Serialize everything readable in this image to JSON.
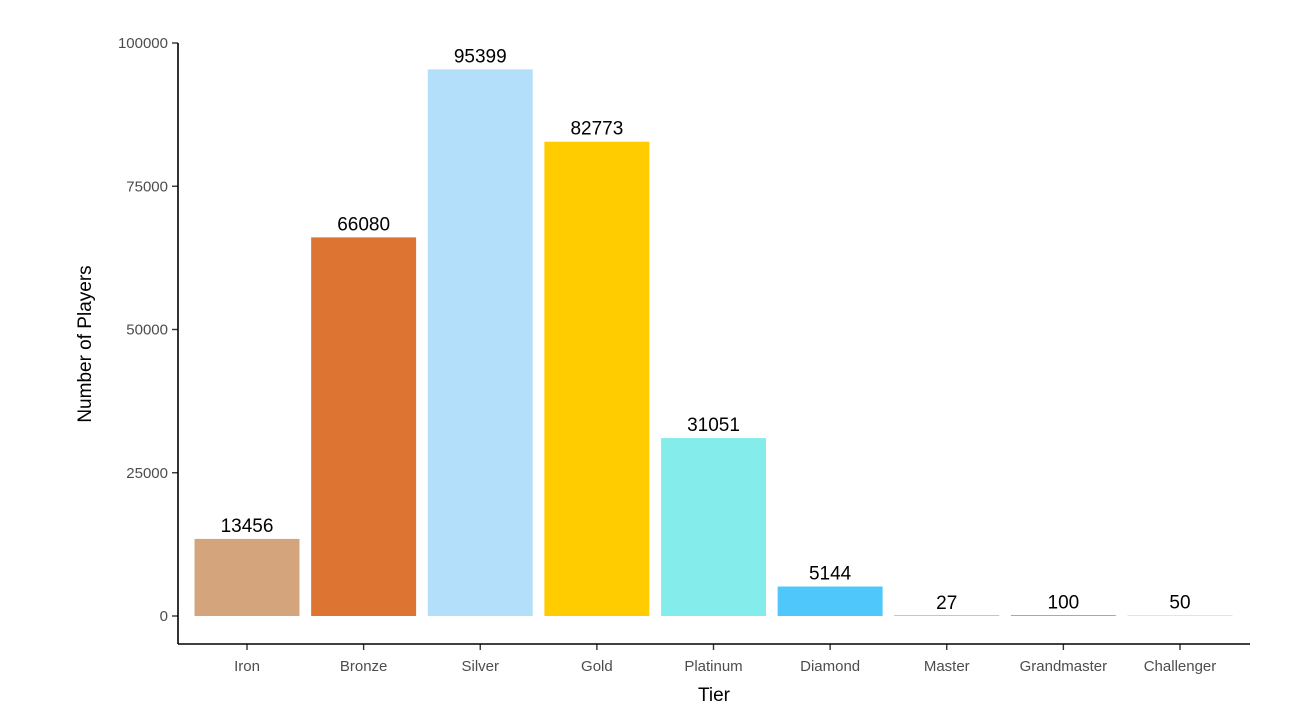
{
  "chart_data": {
    "type": "bar",
    "title": "",
    "xlabel": "Tier",
    "ylabel": "Number of Players",
    "categories": [
      "Iron",
      "Bronze",
      "Silver",
      "Gold",
      "Platinum",
      "Diamond",
      "Master",
      "Grandmaster",
      "Challenger"
    ],
    "values": [
      13456,
      66080,
      95399,
      82773,
      31051,
      5144,
      27,
      100,
      50
    ],
    "data_labels": [
      "13456",
      "66080",
      "95399",
      "82773",
      "31051",
      "5144",
      "27",
      "100",
      "50"
    ],
    "colors": [
      "#D4A57C",
      "#DD7431",
      "#B3DFFB",
      "#FFCC00",
      "#84EDEB",
      "#4FC7FB",
      "#A66FD8",
      "#E4382E",
      "#F4CD35"
    ],
    "ylim": [
      0,
      100000
    ],
    "yticks": [
      0,
      25000,
      50000,
      75000,
      100000
    ],
    "ytick_labels": [
      "0",
      "25000",
      "50000",
      "75000",
      "100000"
    ],
    "grid": false,
    "legend": "none"
  }
}
